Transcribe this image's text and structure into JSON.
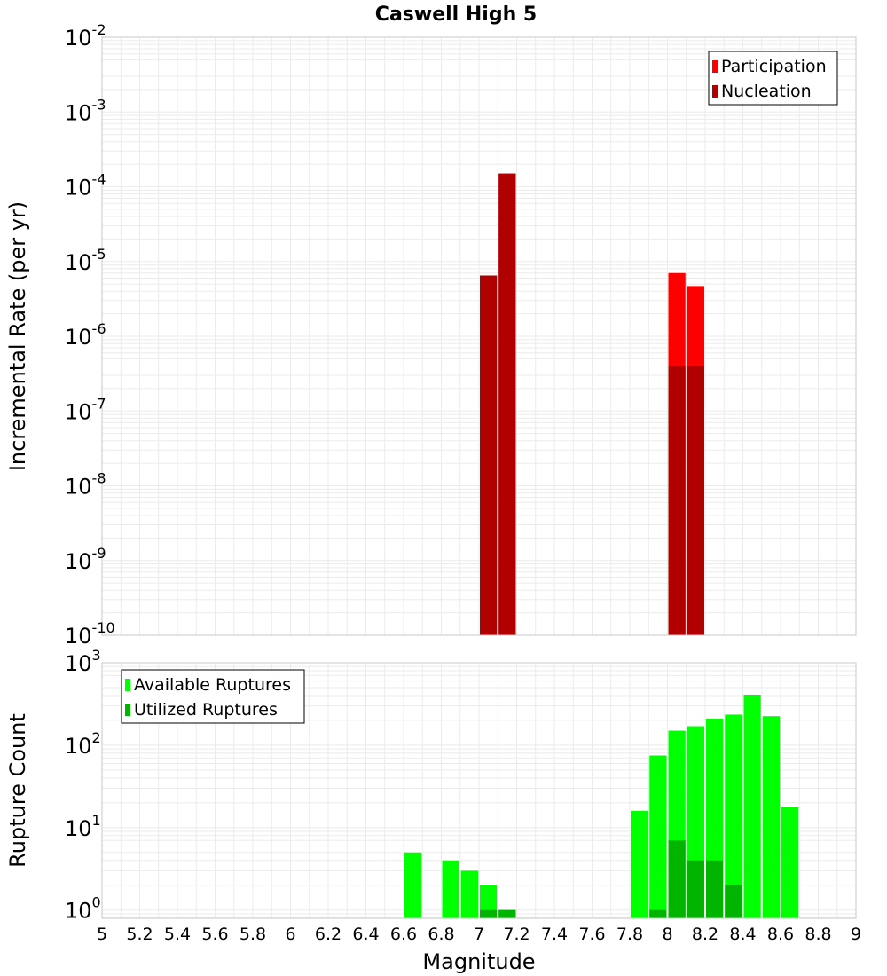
{
  "chart_data": {
    "type": "bar",
    "title": "Caswell High 5",
    "xlabel": "Magnitude",
    "x_ticks": [
      "5",
      "5.2",
      "5.4",
      "5.6",
      "5.8",
      "6",
      "6.2",
      "6.4",
      "6.6",
      "6.8",
      "7",
      "7.2",
      "7.4",
      "7.6",
      "7.8",
      "8",
      "8.2",
      "8.4",
      "8.6",
      "8.8",
      "9"
    ],
    "xlim": [
      5,
      9
    ],
    "bin_width": 0.1,
    "colors": {
      "participation": "#ff0000",
      "nucleation": "#b00000",
      "available": "#00ff00",
      "utilized": "#00b400",
      "grid": "#ebebeb",
      "frame": "#c8c8c8"
    },
    "panels": [
      {
        "ylabel": "Incremental Rate (per yr)",
        "scale": "log",
        "ylim_exp": [
          -10,
          -2
        ],
        "y_ticks": [
          {
            "base": "10",
            "exp": "-2"
          },
          {
            "base": "10",
            "exp": "-3"
          },
          {
            "base": "10",
            "exp": "-4"
          },
          {
            "base": "10",
            "exp": "-5"
          },
          {
            "base": "10",
            "exp": "-6"
          },
          {
            "base": "10",
            "exp": "-7"
          },
          {
            "base": "10",
            "exp": "-8"
          },
          {
            "base": "10",
            "exp": "-9"
          },
          {
            "base": "10",
            "exp": "-10"
          }
        ],
        "legend": [
          "Participation",
          "Nucleation"
        ],
        "series": [
          {
            "name": "Participation",
            "x": [
              7.05,
              7.15,
              8.05,
              8.15
            ],
            "values": [
              6.5e-06,
              0.00015,
              7e-06,
              4.7e-06
            ]
          },
          {
            "name": "Nucleation",
            "x": [
              7.05,
              7.15,
              8.05,
              8.15
            ],
            "values": [
              6.5e-06,
              0.00015,
              4e-07,
              4e-07
            ]
          }
        ]
      },
      {
        "ylabel": "Rupture Count",
        "scale": "log",
        "ylim_exp": [
          -0.1,
          3
        ],
        "y_ticks": [
          {
            "base": "10",
            "exp": "3"
          },
          {
            "base": "10",
            "exp": "2"
          },
          {
            "base": "10",
            "exp": "1"
          },
          {
            "base": "10",
            "exp": "0"
          }
        ],
        "legend": [
          "Available Ruptures",
          "Utilized Ruptures"
        ],
        "series": [
          {
            "name": "Available Ruptures",
            "x": [
              6.65,
              6.85,
              6.95,
              7.05,
              7.15,
              7.85,
              7.95,
              8.05,
              8.15,
              8.25,
              8.35,
              8.45,
              8.55,
              8.65
            ],
            "values": [
              5,
              4,
              3,
              2,
              1,
              16,
              75,
              150,
              170,
              210,
              235,
              410,
              225,
              18
            ]
          },
          {
            "name": "Utilized Ruptures",
            "x": [
              7.05,
              7.15,
              7.95,
              8.05,
              8.15,
              8.25,
              8.35
            ],
            "values": [
              1,
              1,
              1,
              7,
              4,
              4,
              2
            ]
          }
        ]
      }
    ]
  }
}
